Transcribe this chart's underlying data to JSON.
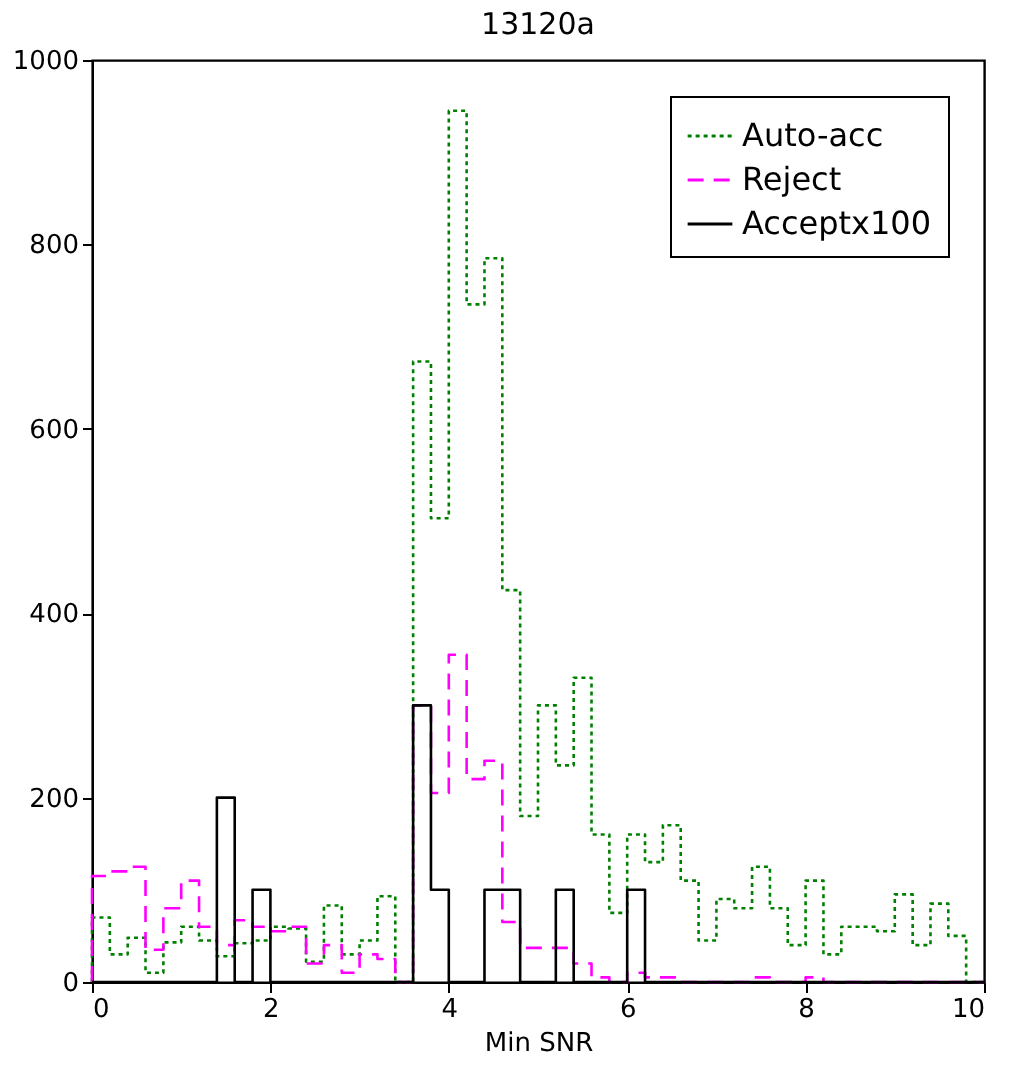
{
  "chart_data": {
    "type": "histogram",
    "title": "13120a",
    "xlabel": "Min SNR",
    "bins": [
      0,
      0.2,
      0.4,
      0.6,
      0.8,
      1.0,
      1.2,
      1.4,
      1.6,
      1.8,
      2.0,
      2.2,
      2.4,
      2.6,
      2.8,
      3.0,
      3.2,
      3.4,
      3.6,
      3.8,
      4.0,
      4.2,
      4.4,
      4.6,
      4.8,
      5.0,
      5.2,
      5.4,
      5.6,
      5.8,
      6.0,
      6.2,
      6.4,
      6.6,
      6.8,
      7.0,
      7.2,
      7.4,
      7.6,
      7.8,
      8.0,
      8.2,
      8.4,
      8.6,
      8.8,
      9.0,
      9.2,
      9.4,
      9.6,
      9.8,
      10.0
    ],
    "series": [
      {
        "name": "Auto-acc",
        "color": "#008000",
        "line_style": "dotted",
        "values": [
          70,
          30,
          48,
          10,
          43,
          60,
          45,
          28,
          42,
          45,
          60,
          58,
          22,
          83,
          30,
          45,
          93,
          0,
          673,
          503,
          945,
          735,
          785,
          425,
          180,
          300,
          235,
          330,
          160,
          75,
          160,
          130,
          170,
          110,
          45,
          90,
          80,
          125,
          80,
          40,
          110,
          30,
          60,
          60,
          55,
          95,
          40,
          85,
          50,
          0
        ]
      },
      {
        "name": "Reject",
        "color": "#ff00ff",
        "line_style": "dashed",
        "values": [
          115,
          120,
          125,
          35,
          80,
          110,
          60,
          40,
          67,
          60,
          55,
          60,
          20,
          40,
          10,
          30,
          25,
          0,
          300,
          205,
          355,
          220,
          240,
          65,
          37,
          37,
          37,
          20,
          5,
          0,
          10,
          5,
          5,
          0,
          0,
          0,
          0,
          5,
          0,
          0,
          5,
          0,
          0,
          0,
          0,
          0,
          0,
          0,
          0,
          0
        ]
      },
      {
        "name": "Acceptx100",
        "color": "#000000",
        "line_style": "solid",
        "values": [
          0,
          0,
          0,
          0,
          0,
          0,
          0,
          200,
          0,
          100,
          0,
          0,
          0,
          0,
          0,
          0,
          0,
          0,
          300,
          100,
          0,
          0,
          100,
          100,
          0,
          0,
          100,
          0,
          0,
          0,
          100,
          0,
          0,
          0,
          0,
          0,
          0,
          0,
          0,
          0,
          0,
          0,
          0,
          0,
          0,
          0,
          0,
          0,
          0,
          0
        ]
      }
    ],
    "xlim": [
      0,
      10
    ],
    "xticks": [
      0,
      2,
      4,
      6,
      8,
      10
    ],
    "ylim": [
      0,
      1000
    ],
    "yticks": [
      0,
      200,
      400,
      600,
      800,
      1000
    ],
    "legend": "top right",
    "grid": false
  }
}
